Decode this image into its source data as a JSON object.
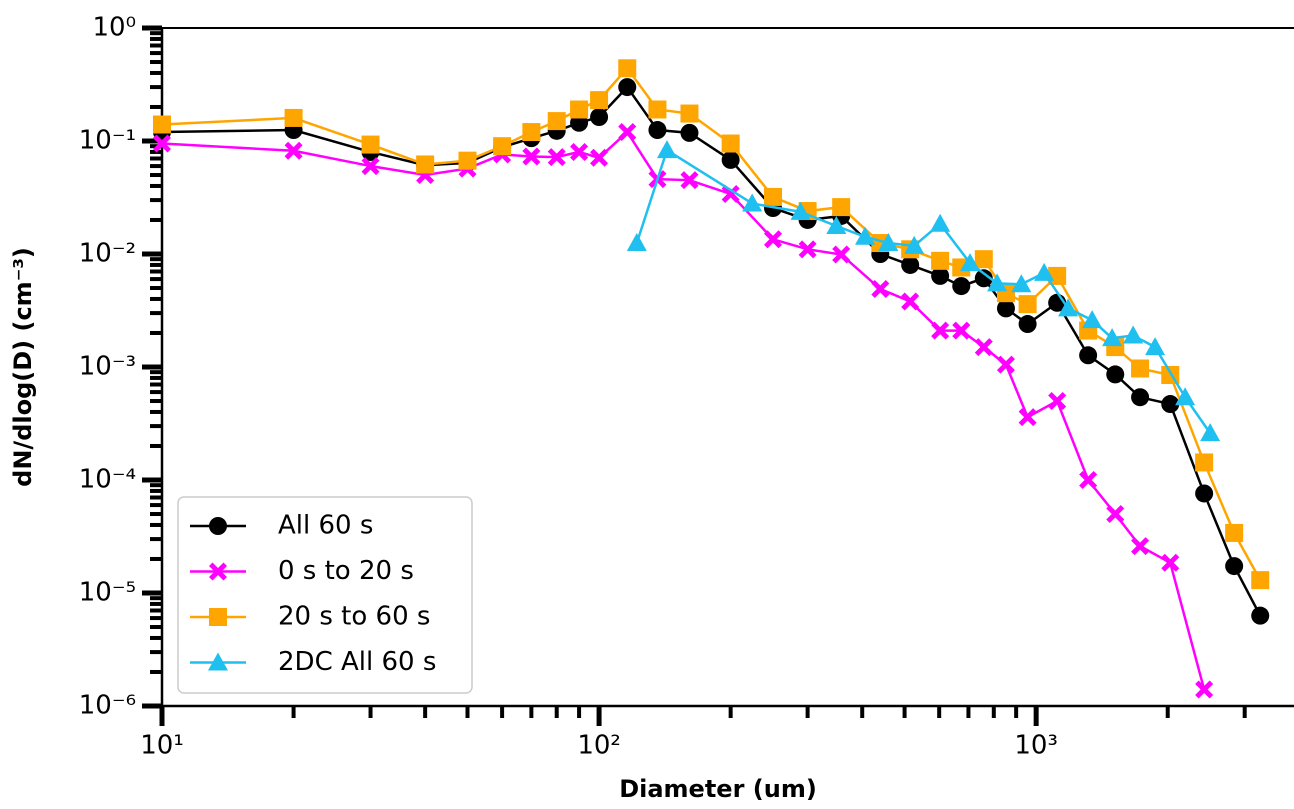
{
  "chart_data": {
    "type": "line",
    "xlabel": "Diameter (um)",
    "ylabel": "dN/dlog(D) (cm⁻³)",
    "xscale": "log",
    "yscale": "log",
    "xlim": [
      10,
      3890
    ],
    "ylim": [
      1e-06,
      1
    ],
    "xticks": [
      {
        "value": 10,
        "label": "10¹"
      },
      {
        "value": 100,
        "label": "10²"
      },
      {
        "value": 1000,
        "label": "10³"
      }
    ],
    "xminorticks": [
      20,
      30,
      40,
      50,
      60,
      70,
      80,
      90,
      200,
      300,
      400,
      500,
      600,
      700,
      800,
      900,
      2000,
      3000
    ],
    "yticks": [
      {
        "value": 1e-06,
        "label": "10⁻⁶"
      },
      {
        "value": 1e-05,
        "label": "10⁻⁵"
      },
      {
        "value": 0.0001,
        "label": "10⁻⁴"
      },
      {
        "value": 0.001,
        "label": "10⁻³"
      },
      {
        "value": 0.01,
        "label": "10⁻²"
      },
      {
        "value": 0.1,
        "label": "10⁻¹"
      },
      {
        "value": 1,
        "label": "10⁰"
      }
    ],
    "yminorticks": [
      2e-06,
      3e-06,
      4e-06,
      5e-06,
      6e-06,
      7e-06,
      8e-06,
      9e-06,
      2e-05,
      3e-05,
      4e-05,
      5e-05,
      6e-05,
      7e-05,
      8e-05,
      9e-05,
      0.0002,
      0.0003,
      0.0004,
      0.0005,
      0.0006,
      0.0007,
      0.0008,
      0.0009,
      0.002,
      0.003,
      0.004,
      0.005,
      0.006,
      0.007,
      0.008,
      0.009,
      0.02,
      0.03,
      0.04,
      0.05,
      0.06,
      0.07,
      0.08,
      0.09,
      0.2,
      0.3,
      0.4,
      0.5,
      0.6,
      0.7,
      0.8,
      0.9
    ],
    "legend_loc": "lower left",
    "series": [
      {
        "name": "All 60 s",
        "color": "#000000",
        "marker": "o",
        "x": [
          10,
          20,
          30,
          40,
          50,
          60,
          70,
          80,
          90,
          100,
          116,
          136,
          161,
          200,
          250,
          300,
          358,
          440,
          515,
          603,
          674,
          759,
          853,
          956,
          1117,
          1315,
          1517,
          1729,
          2027,
          2423,
          2838,
          3256
        ],
        "values": [
          0.12,
          0.125,
          0.08,
          0.061,
          0.064,
          0.088,
          0.106,
          0.123,
          0.145,
          0.163,
          0.3,
          0.125,
          0.118,
          0.068,
          0.0255,
          0.02,
          0.0217,
          0.01,
          0.008,
          0.0064,
          0.0052,
          0.0061,
          0.0033,
          0.0024,
          0.0037,
          0.00127,
          0.00086,
          0.00054,
          0.00047,
          7.6e-05,
          1.73e-05,
          6.3e-06
        ]
      },
      {
        "name": "0 s to 20 s",
        "color": "#ff00ff",
        "marker": "X",
        "x": [
          10,
          20,
          30,
          40,
          50,
          60,
          70,
          80,
          90,
          100,
          116,
          136,
          161,
          200,
          250,
          300,
          358,
          440,
          515,
          603,
          674,
          759,
          853,
          956,
          1117,
          1315,
          1517,
          1729,
          2027,
          2423
        ],
        "values": [
          0.095,
          0.082,
          0.06,
          0.05,
          0.057,
          0.076,
          0.073,
          0.072,
          0.08,
          0.071,
          0.12,
          0.046,
          0.045,
          0.034,
          0.0135,
          0.011,
          0.0099,
          0.0049,
          0.0038,
          0.0021,
          0.0021,
          0.0015,
          0.00105,
          0.00036,
          0.0005,
          0.0001,
          5e-05,
          2.6e-05,
          1.85e-05,
          1.4e-06
        ]
      },
      {
        "name": "20 s to 60 s",
        "color": "#ffa500",
        "marker": "s",
        "x": [
          10,
          20,
          30,
          40,
          50,
          60,
          70,
          80,
          90,
          100,
          116,
          136,
          161,
          200,
          250,
          300,
          358,
          440,
          515,
          603,
          674,
          759,
          853,
          956,
          1117,
          1315,
          1517,
          1729,
          2027,
          2423,
          2838,
          3256
        ],
        "values": [
          0.14,
          0.16,
          0.093,
          0.062,
          0.067,
          0.09,
          0.12,
          0.15,
          0.19,
          0.23,
          0.44,
          0.19,
          0.175,
          0.095,
          0.032,
          0.024,
          0.026,
          0.0125,
          0.011,
          0.0087,
          0.0076,
          0.009,
          0.0045,
          0.0036,
          0.0064,
          0.0021,
          0.0015,
          0.00097,
          0.00085,
          0.000143,
          3.4e-05,
          1.3e-05
        ]
      },
      {
        "name": "2DC All 60 s",
        "color": "#1fbfef",
        "marker": "^",
        "x": [
          122,
          143,
          224,
          289,
          349,
          406,
          459,
          526,
          603,
          706,
          814,
          925,
          1043,
          1183,
          1343,
          1492,
          1667,
          1871,
          2192,
          2501
        ],
        "values": [
          0.0125,
          0.083,
          0.028,
          0.0236,
          0.0177,
          0.0142,
          0.0125,
          0.0118,
          0.0185,
          0.0083,
          0.0055,
          0.0054,
          0.0068,
          0.0033,
          0.0026,
          0.0018,
          0.0019,
          0.0015,
          0.00054,
          0.00026
        ]
      }
    ]
  }
}
